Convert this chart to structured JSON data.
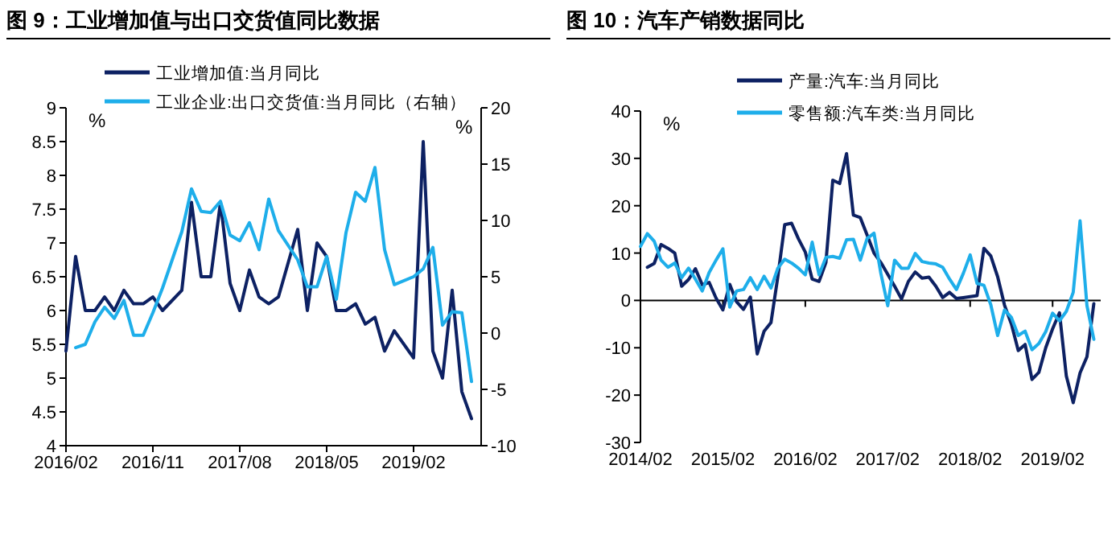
{
  "chart_data": [
    {
      "type": "line",
      "title": "图 9：工业增加值与出口交货值同比数据",
      "ylabel": "%",
      "y2label": "%",
      "legend": "top",
      "xlim": [
        "2016-02",
        "2019-09"
      ],
      "xticks": [
        {
          "value": "2016-02",
          "label": "2016/02"
        },
        {
          "value": "2016-11",
          "label": "2016/11"
        },
        {
          "value": "2017-08",
          "label": "2017/08"
        },
        {
          "value": "2018-05",
          "label": "2018/05"
        },
        {
          "value": "2019-02",
          "label": "2019/02"
        }
      ],
      "ylim": [
        4,
        9
      ],
      "yticks": [
        4,
        4.5,
        5,
        5.5,
        6,
        6.5,
        7,
        7.5,
        8,
        8.5,
        9
      ],
      "y2lim": [
        -10,
        20
      ],
      "y2ticks": [
        -10,
        -5,
        0,
        5,
        10,
        15,
        20
      ],
      "series": [
        {
          "name": "工业增加值:当月同比",
          "color": "#0d2163",
          "x": [
            "2016-02",
            "2016-03",
            "2016-04",
            "2016-05",
            "2016-06",
            "2016-07",
            "2016-08",
            "2016-09",
            "2016-10",
            "2016-11",
            "2016-12",
            "2017-02",
            "2017-03",
            "2017-04",
            "2017-05",
            "2017-06",
            "2017-07",
            "2017-08",
            "2017-09",
            "2017-10",
            "2017-11",
            "2017-12",
            "2018-02",
            "2018-03",
            "2018-04",
            "2018-05",
            "2018-06",
            "2018-07",
            "2018-08",
            "2018-09",
            "2018-10",
            "2018-11",
            "2018-12",
            "2019-02",
            "2019-03",
            "2019-04",
            "2019-05",
            "2019-06",
            "2019-07",
            "2019-08"
          ],
          "values": [
            5.4,
            6.8,
            6.0,
            6.0,
            6.2,
            6.0,
            6.3,
            6.1,
            6.1,
            6.2,
            6.0,
            6.3,
            7.6,
            6.5,
            6.5,
            7.6,
            6.4,
            6.0,
            6.6,
            6.2,
            6.1,
            6.2,
            7.2,
            6.0,
            7.0,
            6.8,
            6.0,
            6.0,
            6.1,
            5.8,
            5.9,
            5.4,
            5.7,
            5.3,
            8.5,
            5.4,
            5.0,
            6.3,
            4.8,
            4.4
          ]
        },
        {
          "name": "工业企业:出口交货值:当月同比（右轴）",
          "color": "#1eaeea",
          "axis": "y2",
          "x": [
            "2016-03",
            "2016-04",
            "2016-05",
            "2016-06",
            "2016-07",
            "2016-08",
            "2016-09",
            "2016-10",
            "2016-11",
            "2016-12",
            "2017-02",
            "2017-03",
            "2017-04",
            "2017-05",
            "2017-06",
            "2017-07",
            "2017-08",
            "2017-09",
            "2017-10",
            "2017-11",
            "2017-12",
            "2018-02",
            "2018-03",
            "2018-04",
            "2018-05",
            "2018-06",
            "2018-07",
            "2018-08",
            "2018-09",
            "2018-10",
            "2018-11",
            "2018-12",
            "2019-02",
            "2019-03",
            "2019-04",
            "2019-05",
            "2019-06",
            "2019-07",
            "2019-08"
          ],
          "values": [
            -1.3,
            -1.0,
            1.0,
            2.3,
            1.3,
            2.9,
            -0.2,
            -0.2,
            1.8,
            4.0,
            9.0,
            12.8,
            10.8,
            10.7,
            11.7,
            8.7,
            8.2,
            9.8,
            7.4,
            11.9,
            9.1,
            6.5,
            4.1,
            4.1,
            6.8,
            3.0,
            8.9,
            12.5,
            11.7,
            14.7,
            7.4,
            4.3,
            5.0,
            5.7,
            7.6,
            0.7,
            1.9,
            1.8,
            -4.3
          ]
        }
      ]
    },
    {
      "type": "line",
      "title": "图 10：汽车产销数据同比",
      "ylabel": "%",
      "legend": "top",
      "xlim": [
        "2014-02",
        "2019-09"
      ],
      "xticks": [
        {
          "value": "2014-02",
          "label": "2014/02"
        },
        {
          "value": "2015-02",
          "label": "2015/02"
        },
        {
          "value": "2016-02",
          "label": "2016/02"
        },
        {
          "value": "2017-02",
          "label": "2017/02"
        },
        {
          "value": "2018-02",
          "label": "2018/02"
        },
        {
          "value": "2019-02",
          "label": "2019/02"
        }
      ],
      "ylim": [
        -30,
        40
      ],
      "yticks": [
        -30,
        -20,
        -10,
        0,
        10,
        20,
        30,
        40
      ],
      "series": [
        {
          "name": "产量:汽车:当月同比",
          "color": "#0d2163",
          "x": [
            "2014-03",
            "2014-04",
            "2014-05",
            "2014-06",
            "2014-07",
            "2014-08",
            "2014-09",
            "2014-10",
            "2014-11",
            "2014-12",
            "2015-01",
            "2015-02",
            "2015-03",
            "2015-04",
            "2015-05",
            "2015-06",
            "2015-07",
            "2015-08",
            "2015-09",
            "2015-10",
            "2015-11",
            "2015-12",
            "2016-01",
            "2016-02",
            "2016-03",
            "2016-04",
            "2016-05",
            "2016-06",
            "2016-07",
            "2016-08",
            "2016-09",
            "2016-10",
            "2016-11",
            "2016-12",
            "2017-01",
            "2017-02",
            "2017-03",
            "2017-04",
            "2017-05",
            "2017-06",
            "2017-07",
            "2017-08",
            "2017-09",
            "2017-10",
            "2017-11",
            "2017-12",
            "2018-01",
            "2018-02",
            "2018-03",
            "2018-04",
            "2018-05",
            "2018-06",
            "2018-07",
            "2018-08",
            "2018-09",
            "2018-10",
            "2018-11",
            "2018-12",
            "2019-01",
            "2019-02",
            "2019-03",
            "2019-04",
            "2019-05",
            "2019-06",
            "2019-07",
            "2019-08"
          ],
          "values": [
            7.0,
            7.8,
            11.8,
            11.0,
            10.0,
            3.0,
            4.4,
            6.7,
            3.3,
            3.8,
            0.5,
            -2.0,
            3.4,
            -0.3,
            -1.9,
            0.7,
            -11.3,
            -6.5,
            -4.7,
            5.0,
            16.0,
            16.3,
            13.0,
            10.2,
            4.5,
            4.0,
            8.0,
            25.4,
            24.7,
            31.0,
            18.0,
            17.5,
            13.8,
            10.0,
            8.0,
            5.5,
            3.0,
            0.3,
            4.0,
            6.0,
            4.7,
            4.9,
            3.0,
            0.6,
            1.7,
            0.4,
            0.6,
            0.8,
            1.0,
            11.0,
            9.4,
            5.0,
            -1.0,
            -5.0,
            -10.6,
            -9.3,
            -16.7,
            -15.2,
            -10.0,
            -6.0,
            -2.6,
            -16.0,
            -21.6,
            -15.3,
            -11.9,
            -0.7
          ]
        },
        {
          "name": "零售额:汽车类:当月同比",
          "color": "#1eaeea",
          "x": [
            "2014-02",
            "2014-03",
            "2014-04",
            "2014-05",
            "2014-06",
            "2014-07",
            "2014-08",
            "2014-09",
            "2014-10",
            "2014-11",
            "2014-12",
            "2015-01",
            "2015-02",
            "2015-03",
            "2015-04",
            "2015-05",
            "2015-06",
            "2015-07",
            "2015-08",
            "2015-09",
            "2015-10",
            "2015-11",
            "2015-12",
            "2016-01",
            "2016-02",
            "2016-03",
            "2016-04",
            "2016-05",
            "2016-06",
            "2016-07",
            "2016-08",
            "2016-09",
            "2016-10",
            "2016-11",
            "2016-12",
            "2017-01",
            "2017-02",
            "2017-03",
            "2017-04",
            "2017-05",
            "2017-06",
            "2017-07",
            "2017-08",
            "2017-09",
            "2017-10",
            "2017-11",
            "2017-12",
            "2018-01",
            "2018-02",
            "2018-03",
            "2018-04",
            "2018-05",
            "2018-06",
            "2018-07",
            "2018-08",
            "2018-09",
            "2018-10",
            "2018-11",
            "2018-12",
            "2019-01",
            "2019-02",
            "2019-03",
            "2019-04",
            "2019-05",
            "2019-06",
            "2019-07",
            "2019-08"
          ],
          "values": [
            11.4,
            14.1,
            12.5,
            8.5,
            7.0,
            7.9,
            4.8,
            6.8,
            4.5,
            2.0,
            5.9,
            8.5,
            10.9,
            -1.4,
            2.0,
            2.3,
            4.8,
            2.3,
            5.1,
            2.6,
            6.8,
            8.7,
            7.9,
            6.8,
            5.4,
            12.3,
            5.4,
            9.1,
            9.3,
            8.9,
            12.8,
            12.9,
            8.5,
            13.1,
            14.2,
            5.7,
            -1.1,
            8.5,
            6.8,
            6.8,
            9.9,
            8.2,
            7.9,
            7.7,
            7.0,
            4.5,
            2.3,
            5.7,
            9.6,
            3.6,
            3.2,
            -0.9,
            -7.4,
            -2.0,
            -3.6,
            -7.4,
            -6.5,
            -10.4,
            -9.1,
            -6.6,
            -2.7,
            -4.3,
            -2.3,
            1.7,
            16.8,
            -1.1,
            -8.2
          ]
        }
      ]
    }
  ]
}
